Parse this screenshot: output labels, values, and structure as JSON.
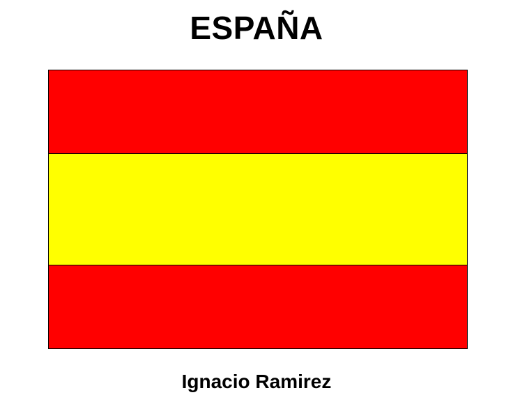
{
  "title": "ESPAÑA",
  "flag": {
    "stripes": [
      {
        "color": "#ff0000"
      },
      {
        "color": "#ffff00"
      },
      {
        "color": "#ff0000"
      }
    ]
  },
  "author": "Ignacio Ramirez"
}
